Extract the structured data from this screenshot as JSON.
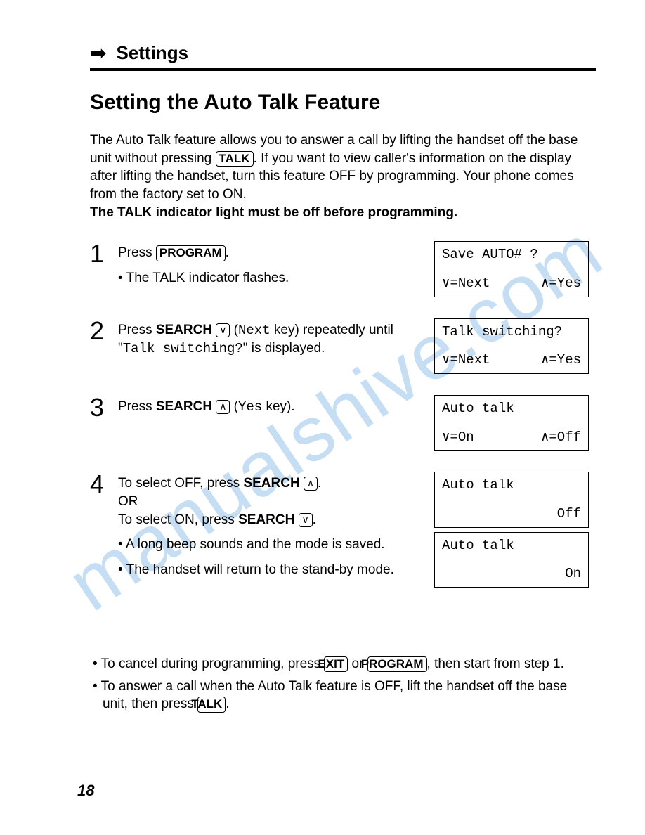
{
  "header": {
    "section": "Settings",
    "arrow_glyph": "➡"
  },
  "title": "Setting the Auto Talk Feature",
  "intro": {
    "p1a": "The Auto Talk feature allows you to answer a call by lifting the handset off the base unit without pressing ",
    "key_talk": "TALK",
    "p1b": ". If you want to view caller's information on the display after lifting the handset, turn this feature OFF by programming. Your phone comes from the factory set to ON.",
    "p2": "The TALK indicator light must be off before programming."
  },
  "steps": [
    {
      "num": "1",
      "body_a": "Press ",
      "body_key": "PROGRAM",
      "body_b": ".",
      "subs": [
        "The TALK indicator flashes."
      ],
      "lcds": [
        {
          "line1": "Save AUTO# ?",
          "left": "∨=Next",
          "right": "∧=Yes"
        }
      ]
    },
    {
      "num": "2",
      "body_a": "Press ",
      "body_bold": "SEARCH",
      "body_icon": "∨",
      "body_b": " (",
      "body_mono": "Next",
      "body_c": " key) repeatedly until \"",
      "body_mono2": "Talk switching?",
      "body_d": "\" is displayed.",
      "subs": [],
      "lcds": [
        {
          "line1": "Talk switching?",
          "left": "∨=Next",
          "right": "∧=Yes"
        }
      ]
    },
    {
      "num": "3",
      "body_a": "Press ",
      "body_bold": "SEARCH",
      "body_icon": "∧",
      "body_b": " (",
      "body_mono": "Yes",
      "body_c": " key).",
      "subs": [],
      "lcds": [
        {
          "line1": "Auto talk",
          "left": "∨=On",
          "right": "∧=Off"
        }
      ]
    },
    {
      "num": "4",
      "line1_a": "To select OFF, press ",
      "line1_bold": "SEARCH",
      "line1_icon": "∧",
      "line1_b": ".",
      "line_or": "OR",
      "line2_a": "To select ON, press ",
      "line2_bold": "SEARCH",
      "line2_icon": "∨",
      "line2_b": ".",
      "subs": [
        "A long beep sounds and the mode is saved.",
        "The handset will return to the stand-by mode."
      ],
      "lcds": [
        {
          "line1": "Auto talk",
          "left": "",
          "right": "Off"
        },
        {
          "line1": "Auto talk",
          "left": "",
          "right": "On"
        }
      ]
    }
  ],
  "notes": {
    "n1_a": "To cancel during programming, press ",
    "n1_key1": "EXIT",
    "n1_b": " or ",
    "n1_key2": "PROGRAM",
    "n1_c": ", then start from step 1.",
    "n2_a": "To answer a call when the Auto Talk feature is OFF, lift the handset off the base unit, then press ",
    "n2_key": "TALK",
    "n2_b": "."
  },
  "page_number": "18",
  "watermark": "manualshive.com"
}
